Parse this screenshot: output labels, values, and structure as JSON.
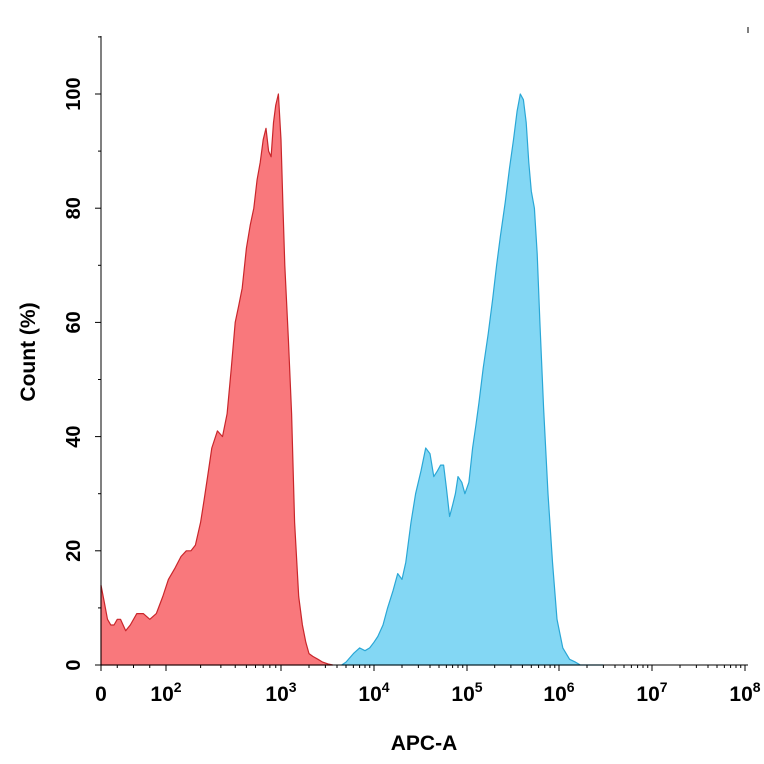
{
  "chart_data": {
    "type": "area",
    "title": "",
    "xlabel": "APC-A",
    "ylabel": "Count (%)",
    "x_scale": "biexponential",
    "xlim": [
      0,
      100000000
    ],
    "ylim": [
      0,
      100
    ],
    "x_ticks": [
      {
        "value": 0,
        "base": "0",
        "exp": ""
      },
      {
        "value": 100,
        "base": "10",
        "exp": "2"
      },
      {
        "value": 1000,
        "base": "10",
        "exp": "3"
      },
      {
        "value": 10000,
        "base": "10",
        "exp": "4"
      },
      {
        "value": 100000,
        "base": "10",
        "exp": "5"
      },
      {
        "value": 1000000,
        "base": "10",
        "exp": "6"
      },
      {
        "value": 10000000,
        "base": "10",
        "exp": "7"
      },
      {
        "value": 100000000,
        "base": "10",
        "exp": "8"
      }
    ],
    "y_ticks": [
      0,
      20,
      40,
      60,
      80,
      100
    ],
    "grid": false,
    "legend": "none",
    "series": [
      {
        "color": "#f9787c",
        "stroke": "#c9262b",
        "x": [
          0,
          5,
          10,
          15,
          20,
          25,
          30,
          38,
          45,
          55,
          65,
          75,
          85,
          95,
          105,
          120,
          135,
          150,
          165,
          180,
          200,
          215,
          230,
          250,
          280,
          310,
          340,
          370,
          400,
          430,
          460,
          500,
          540,
          580,
          620,
          660,
          700,
          740,
          780,
          820,
          860,
          900,
          950,
          1000,
          1050,
          1100,
          1200,
          1300,
          1400,
          1550,
          1700,
          1850,
          2000,
          2200,
          2500,
          2800,
          3200,
          3600
        ],
        "y": [
          14,
          11,
          8,
          7,
          7,
          8,
          8,
          6,
          7,
          9,
          9,
          8,
          9,
          12,
          15,
          17,
          19,
          20,
          20,
          21,
          25,
          29,
          33,
          38,
          41,
          40,
          44,
          52,
          60,
          63,
          66,
          73,
          77,
          80,
          85,
          88,
          92,
          94,
          90,
          89,
          95,
          98,
          100,
          92,
          80,
          70,
          57,
          44,
          25,
          12,
          7,
          4,
          2,
          1.5,
          1,
          0.5,
          0.2,
          0
        ]
      },
      {
        "color": "#83d7f4",
        "stroke": "#2aa7d6",
        "x": [
          4500,
          5000,
          6000,
          7000,
          8000,
          9000,
          10000,
          11000,
          12500,
          14000,
          16000,
          18000,
          20000,
          22000,
          25000,
          28000,
          32000,
          36000,
          40000,
          44000,
          48000,
          52000,
          56000,
          60000,
          65000,
          70000,
          75000,
          80000,
          88000,
          95000,
          105000,
          115000,
          125000,
          135000,
          150000,
          170000,
          190000,
          210000,
          230000,
          260000,
          290000,
          320000,
          350000,
          380000,
          410000,
          440000,
          470000,
          500000,
          540000,
          580000,
          620000,
          680000,
          760000,
          850000,
          950000,
          1100000,
          1300000,
          1500000,
          1700000,
          1900000,
          2200000,
          2600000,
          3000000
        ],
        "y": [
          0,
          0.5,
          2,
          3,
          2.5,
          3,
          4,
          5,
          7,
          10,
          13,
          16,
          15,
          18,
          25,
          30,
          34,
          38,
          37,
          33,
          34,
          35,
          35,
          31,
          26,
          28,
          30,
          33,
          32,
          30,
          32,
          38,
          42,
          46,
          52,
          58,
          64,
          70,
          75,
          81,
          87,
          92,
          97,
          100,
          99,
          95,
          88,
          83,
          80,
          72,
          60,
          45,
          30,
          18,
          8,
          3,
          1,
          0.5,
          0,
          0,
          0,
          0,
          0
        ]
      }
    ]
  }
}
